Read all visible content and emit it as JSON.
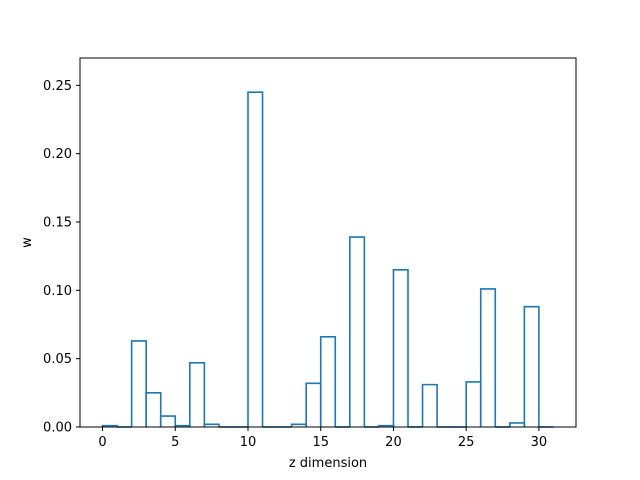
{
  "chart_data": {
    "type": "bar",
    "style": "step-histogram",
    "color": "#1f77b4",
    "xlabel": "z dimension",
    "ylabel": "w",
    "xlim": [
      -1.55,
      32.55
    ],
    "ylim": [
      0.0,
      0.27
    ],
    "grid": false,
    "xticks": [
      0,
      5,
      10,
      15,
      20,
      25,
      30
    ],
    "yticks": [
      0.0,
      0.05,
      0.1,
      0.15,
      0.2,
      0.25
    ],
    "xtick_labels": [
      "0",
      "5",
      "10",
      "15",
      "20",
      "25",
      "30"
    ],
    "ytick_labels": [
      "0.00",
      "0.05",
      "0.10",
      "0.15",
      "0.20",
      "0.25"
    ],
    "bins": [
      {
        "x": 0,
        "y": 0.001
      },
      {
        "x": 1,
        "y": 0.0
      },
      {
        "x": 2,
        "y": 0.063
      },
      {
        "x": 3,
        "y": 0.025
      },
      {
        "x": 4,
        "y": 0.008
      },
      {
        "x": 5,
        "y": 0.001
      },
      {
        "x": 6,
        "y": 0.047
      },
      {
        "x": 7,
        "y": 0.002
      },
      {
        "x": 8,
        "y": 0.0
      },
      {
        "x": 9,
        "y": 0.0
      },
      {
        "x": 10,
        "y": 0.245
      },
      {
        "x": 11,
        "y": 0.0
      },
      {
        "x": 12,
        "y": 0.0
      },
      {
        "x": 13,
        "y": 0.002
      },
      {
        "x": 14,
        "y": 0.032
      },
      {
        "x": 15,
        "y": 0.066
      },
      {
        "x": 16,
        "y": 0.0
      },
      {
        "x": 17,
        "y": 0.139
      },
      {
        "x": 18,
        "y": 0.0
      },
      {
        "x": 19,
        "y": 0.001
      },
      {
        "x": 20,
        "y": 0.115
      },
      {
        "x": 21,
        "y": 0.0
      },
      {
        "x": 22,
        "y": 0.031
      },
      {
        "x": 23,
        "y": 0.0
      },
      {
        "x": 24,
        "y": 0.0
      },
      {
        "x": 25,
        "y": 0.033
      },
      {
        "x": 26,
        "y": 0.101
      },
      {
        "x": 27,
        "y": 0.0
      },
      {
        "x": 28,
        "y": 0.003
      },
      {
        "x": 29,
        "y": 0.088
      },
      {
        "x": 30,
        "y": 0.0
      }
    ]
  }
}
